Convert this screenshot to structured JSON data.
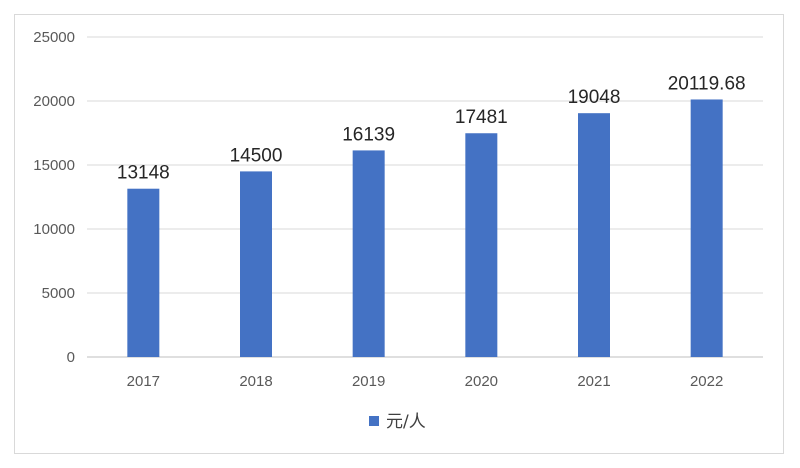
{
  "chart_data": {
    "type": "bar",
    "categories": [
      "2017",
      "2018",
      "2019",
      "2020",
      "2021",
      "2022"
    ],
    "series": [
      {
        "name": "元/人",
        "values": [
          13148,
          14500,
          16139,
          17481,
          19048,
          20119.68
        ],
        "data_labels": [
          "13148",
          "14500",
          "16139",
          "17481",
          "19048",
          "20119.68"
        ],
        "color": "#4472C4"
      }
    ],
    "title": "",
    "xlabel": "",
    "ylabel": "",
    "ylim": [
      0,
      25000
    ],
    "yticks": [
      "0",
      "5000",
      "10000",
      "15000",
      "20000",
      "25000"
    ],
    "grid": true,
    "legend": {
      "position": "bottom",
      "entries": [
        "元/人"
      ]
    }
  }
}
